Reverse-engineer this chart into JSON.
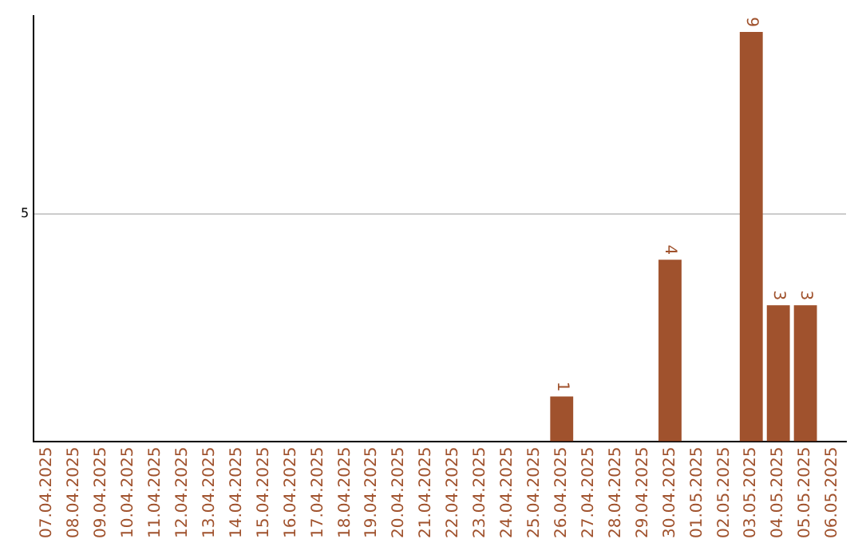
{
  "chart_data": {
    "type": "bar",
    "categories": [
      "07.04.2025",
      "08.04.2025",
      "09.04.2025",
      "10.04.2025",
      "11.04.2025",
      "12.04.2025",
      "13.04.2025",
      "14.04.2025",
      "15.04.2025",
      "16.04.2025",
      "17.04.2025",
      "18.04.2025",
      "19.04.2025",
      "20.04.2025",
      "21.04.2025",
      "22.04.2025",
      "23.04.2025",
      "24.04.2025",
      "25.04.2025",
      "26.04.2025",
      "27.04.2025",
      "28.04.2025",
      "29.04.2025",
      "30.04.2025",
      "01.05.2025",
      "02.05.2025",
      "03.05.2025",
      "04.05.2025",
      "05.05.2025",
      "06.05.2025"
    ],
    "values": [
      null,
      null,
      null,
      null,
      null,
      null,
      null,
      null,
      null,
      null,
      null,
      null,
      null,
      null,
      null,
      null,
      null,
      null,
      null,
      1,
      null,
      null,
      null,
      4,
      null,
      null,
      9,
      3,
      3,
      null
    ],
    "value_labels": [
      null,
      null,
      null,
      null,
      null,
      null,
      null,
      null,
      null,
      null,
      null,
      null,
      null,
      null,
      null,
      null,
      null,
      null,
      null,
      "1",
      null,
      null,
      null,
      "4",
      null,
      null,
      "9",
      "3",
      "3",
      null
    ],
    "color": "#a0522d",
    "ylim": [
      0,
      9.35
    ],
    "yticks": [
      {
        "value": 0,
        "label": null
      },
      5
    ],
    "grid": "y",
    "legend": false
  }
}
